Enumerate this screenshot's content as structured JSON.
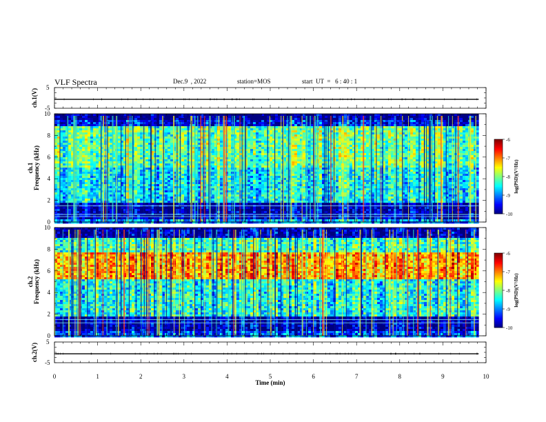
{
  "header": {
    "title": "VLF Spectra",
    "date": "Dec.9  , 2022",
    "station": "station=MOS",
    "start": "start  UT  =   6 : 40 : 1"
  },
  "chart_data": [
    {
      "type": "line",
      "panel": "ch1-voltage",
      "ylabel": "ch.1(V)",
      "ylim": [
        -5,
        5
      ],
      "y_ticks": [
        "5",
        "-5"
      ],
      "series": [
        {
          "x": [
            0,
            9.83
          ],
          "y": [
            -0.7,
            -0.7
          ]
        }
      ]
    },
    {
      "type": "heatmap",
      "panel": "ch1-spectrogram",
      "ylabel_top": "ch.1",
      "ylabel": "Frequency (kHz)",
      "ylim": [
        0,
        10
      ],
      "y_ticks": [
        "0",
        "2",
        "4",
        "6",
        "8",
        "10"
      ],
      "xlim": [
        0,
        10
      ],
      "data_xmax": 9.83,
      "colorbar": {
        "label": "log(PSD)(V²/Hz)",
        "range": [
          -10,
          -6
        ],
        "ticks": [
          "-6",
          "-7",
          "-8",
          "-9",
          "-10"
        ]
      },
      "profile": [
        {
          "f": [
            0,
            0.3
          ],
          "v": -8.8
        },
        {
          "f": [
            0.3,
            1.7
          ],
          "v": -9.8
        },
        {
          "f": [
            1.7,
            5.0
          ],
          "v": -8.5
        },
        {
          "f": [
            5.0,
            8.8
          ],
          "v": -8.1
        },
        {
          "f": [
            8.8,
            9.4
          ],
          "v": -9.5
        },
        {
          "f": [
            9.4,
            10
          ],
          "v": -10.0
        }
      ],
      "lines_khz": [
        0.5,
        0.7,
        1.5
      ]
    },
    {
      "type": "heatmap",
      "panel": "ch2-spectrogram",
      "ylabel_top": "ch.2",
      "ylabel": "Frequency (kHz)",
      "ylim": [
        0,
        10
      ],
      "y_ticks": [
        "0",
        "2",
        "4",
        "6",
        "8",
        "10"
      ],
      "xlim": [
        0,
        10
      ],
      "data_xmax": 9.83,
      "colorbar": {
        "label": "log(PSD)(V²/Hz)",
        "range": [
          -10,
          -6
        ],
        "ticks": [
          "-6",
          "-7",
          "-8",
          "-9",
          "-10"
        ]
      },
      "profile": [
        {
          "f": [
            0,
            0.4
          ],
          "v": -9.2
        },
        {
          "f": [
            0.4,
            1.8
          ],
          "v": -9.8
        },
        {
          "f": [
            1.8,
            5.3
          ],
          "v": -8.4
        },
        {
          "f": [
            5.3,
            7.8
          ],
          "v": -7.1
        },
        {
          "f": [
            7.8,
            9.0
          ],
          "v": -8.2
        },
        {
          "f": [
            9.0,
            10
          ],
          "v": -9.8
        }
      ],
      "lines_khz": [
        1.2,
        1.5
      ]
    },
    {
      "type": "line",
      "panel": "ch2-voltage",
      "ylabel": "ch.2(V)",
      "ylim": [
        -5,
        5
      ],
      "y_ticks": [
        "5",
        "-5"
      ],
      "xlabel": "Time (min)",
      "xlim": [
        0,
        10
      ],
      "x_ticks": [
        "0",
        "1",
        "2",
        "3",
        "4",
        "5",
        "6",
        "7",
        "8",
        "9",
        "10"
      ],
      "series": [
        {
          "x": [
            0,
            9.83
          ],
          "y": [
            -0.7,
            -0.7
          ]
        }
      ]
    }
  ]
}
